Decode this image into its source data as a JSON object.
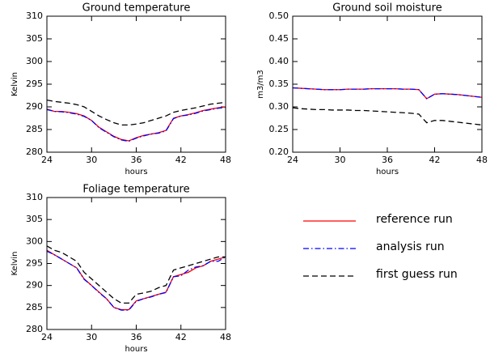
{
  "chart_data": [
    {
      "type": "line",
      "title": "Ground temperature",
      "xlabel": "hours",
      "ylabel": "Kelvin",
      "x": [
        24,
        25,
        26,
        27,
        28,
        29,
        30,
        31,
        32,
        33,
        34,
        35,
        36,
        37,
        38,
        39,
        40,
        41,
        42,
        43,
        44,
        45,
        46,
        47,
        48
      ],
      "xlim": [
        24,
        48
      ],
      "xticks": [
        24,
        30,
        36,
        42,
        48
      ],
      "ylim": [
        280,
        310
      ],
      "yticks": [
        280,
        285,
        290,
        295,
        300,
        305,
        310
      ],
      "legend": true,
      "series": [
        {
          "name": "reference run",
          "color": "#ff0000",
          "dash": "solid",
          "values": [
            289.5,
            289,
            289,
            288.8,
            288.5,
            288,
            287,
            285.5,
            284.5,
            283.5,
            282.8,
            282.5,
            283.2,
            283.7,
            284,
            284.3,
            284.8,
            287.5,
            288,
            288.3,
            288.7,
            289.2,
            289.5,
            289.8,
            290
          ]
        },
        {
          "name": "analysis run",
          "color": "#0000ff",
          "dash": "dashdot",
          "values": [
            289.4,
            289,
            288.9,
            288.7,
            288.4,
            287.9,
            287,
            285.4,
            284.4,
            283.4,
            282.7,
            282.4,
            283.1,
            283.6,
            284,
            284.2,
            284.7,
            287.4,
            288,
            288.2,
            288.6,
            289.1,
            289.4,
            289.7,
            289.9
          ]
        },
        {
          "name": "first guess run",
          "color": "#000000",
          "dash": "dashed",
          "values": [
            291.5,
            291.2,
            291,
            290.8,
            290.5,
            290,
            289,
            288,
            287.2,
            286.5,
            286,
            286,
            286.2,
            286.5,
            287,
            287.5,
            288,
            288.8,
            289.2,
            289.5,
            289.8,
            290.2,
            290.6,
            290.8,
            291
          ]
        }
      ]
    },
    {
      "type": "line",
      "title": "Ground soil moisture",
      "xlabel": "hours",
      "ylabel": "m3/m3",
      "x": [
        24,
        25,
        26,
        27,
        28,
        29,
        30,
        31,
        32,
        33,
        34,
        35,
        36,
        37,
        38,
        39,
        40,
        41,
        42,
        43,
        44,
        45,
        46,
        47,
        48
      ],
      "xlim": [
        24,
        48
      ],
      "xticks": [
        24,
        30,
        36,
        42,
        48
      ],
      "ylim": [
        0.2,
        0.5
      ],
      "yticks": [
        {
          "value": 0.2,
          "label": "0.20"
        },
        {
          "value": 0.25,
          "label": "0.25"
        },
        {
          "value": 0.3,
          "label": "0.30"
        },
        {
          "value": 0.35,
          "label": "0.35"
        },
        {
          "value": 0.4,
          "label": "0.40"
        },
        {
          "value": 0.45,
          "label": "0.45"
        },
        {
          "value": 0.5,
          "label": "0.50"
        }
      ],
      "series": [
        {
          "color": "#ff0000",
          "dash": "solid",
          "values": [
            0.342,
            0.341,
            0.34,
            0.339,
            0.338,
            0.338,
            0.338,
            0.339,
            0.339,
            0.339,
            0.34,
            0.34,
            0.34,
            0.34,
            0.339,
            0.339,
            0.338,
            0.318,
            0.328,
            0.329,
            0.328,
            0.327,
            0.325,
            0.323,
            0.321
          ]
        },
        {
          "color": "#0000ff",
          "dash": "dashdot",
          "values": [
            0.342,
            0.341,
            0.34,
            0.339,
            0.338,
            0.338,
            0.338,
            0.339,
            0.339,
            0.339,
            0.34,
            0.34,
            0.34,
            0.34,
            0.339,
            0.339,
            0.338,
            0.318,
            0.328,
            0.329,
            0.328,
            0.327,
            0.325,
            0.323,
            0.321
          ]
        },
        {
          "color": "#000000",
          "dash": "dashed",
          "values": [
            0.298,
            0.296,
            0.295,
            0.294,
            0.294,
            0.293,
            0.293,
            0.293,
            0.292,
            0.292,
            0.291,
            0.29,
            0.289,
            0.288,
            0.287,
            0.286,
            0.284,
            0.265,
            0.27,
            0.27,
            0.268,
            0.266,
            0.264,
            0.262,
            0.26
          ]
        }
      ]
    },
    {
      "type": "line",
      "title": "Foliage temperature",
      "xlabel": "hours",
      "ylabel": "Kelvin",
      "x": [
        24,
        25,
        26,
        27,
        28,
        29,
        30,
        31,
        32,
        33,
        34,
        35,
        36,
        37,
        38,
        39,
        40,
        41,
        42,
        43,
        44,
        45,
        46,
        47,
        48
      ],
      "xlim": [
        24,
        48
      ],
      "xticks": [
        24,
        30,
        36,
        42,
        48
      ],
      "ylim": [
        280,
        310
      ],
      "yticks": [
        280,
        285,
        290,
        295,
        300,
        305,
        310
      ],
      "series": [
        {
          "color": "#ff0000",
          "dash": "solid",
          "values": [
            298,
            297,
            296,
            295,
            294,
            291.5,
            290,
            288.5,
            287,
            285,
            284.5,
            284.5,
            286.5,
            287,
            287.5,
            288,
            288.5,
            292,
            292.5,
            293,
            294,
            294.5,
            295.5,
            296,
            296.5
          ]
        },
        {
          "color": "#0000ff",
          "dash": "dashdot",
          "values": [
            297.8,
            297,
            296,
            295,
            294,
            291.4,
            290,
            288.4,
            287,
            285,
            284.4,
            284.4,
            286.4,
            287,
            287.4,
            288,
            288.4,
            292,
            292.2,
            293.5,
            294.2,
            294.5,
            295.5,
            295.5,
            296.5
          ]
        },
        {
          "color": "#000000",
          "dash": "dashed",
          "values": [
            299,
            298,
            297.5,
            296.5,
            295.5,
            293,
            291.5,
            290,
            288.5,
            287,
            286,
            286,
            288,
            288.3,
            288.7,
            289.5,
            290,
            293.5,
            294,
            294.5,
            295,
            295.5,
            296,
            296.5,
            296.5
          ]
        }
      ]
    }
  ]
}
